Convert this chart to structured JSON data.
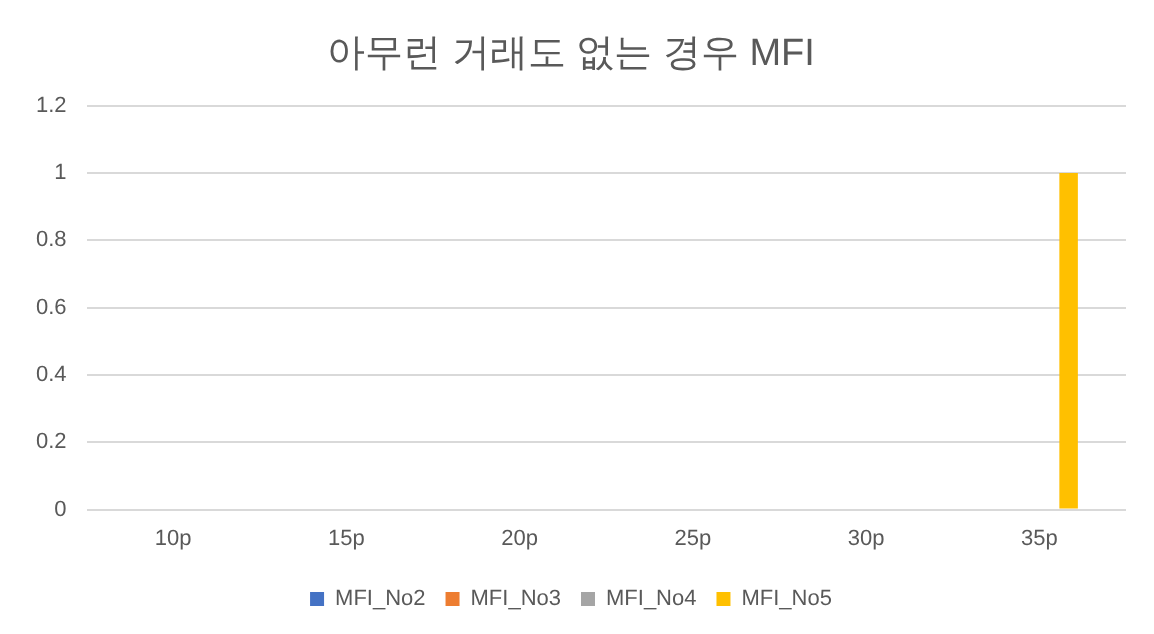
{
  "chart_data": {
    "type": "bar",
    "title": "아무런 거래도 없는 경우 MFI",
    "categories": [
      "10p",
      "15p",
      "20p",
      "25p",
      "30p",
      "35p"
    ],
    "series": [
      {
        "name": "MFI_No2",
        "color": "#4472c4",
        "values": [
          0,
          0,
          0,
          0,
          0,
          0
        ]
      },
      {
        "name": "MFI_No3",
        "color": "#ed7d31",
        "values": [
          0,
          0,
          0,
          0,
          0,
          0
        ]
      },
      {
        "name": "MFI_No4",
        "color": "#a5a5a5",
        "values": [
          0,
          0,
          0,
          0,
          0,
          0
        ]
      },
      {
        "name": "MFI_No5",
        "color": "#ffc000",
        "values": [
          0,
          0,
          0,
          0,
          0,
          1
        ]
      }
    ],
    "ylim": [
      0,
      1.2
    ],
    "yticks": [
      0,
      0.2,
      0.4,
      0.6,
      0.8,
      1,
      1.2
    ],
    "grid": "y",
    "legend": "bottom"
  }
}
